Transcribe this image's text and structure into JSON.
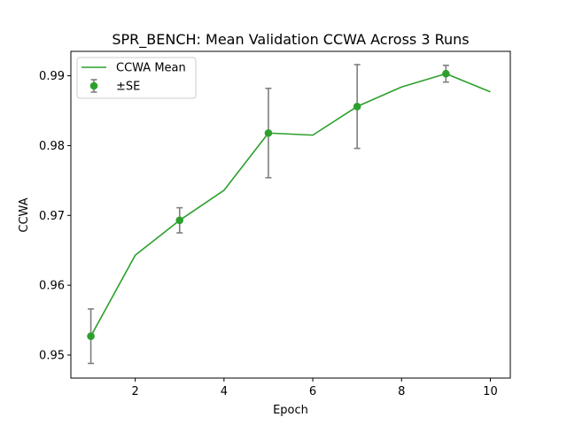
{
  "chart_data": {
    "type": "line",
    "title": "SPR_BENCH: Mean Validation CCWA Across 3 Runs",
    "xlabel": "Epoch",
    "ylabel": "CCWA",
    "xlim": [
      0.55,
      10.45
    ],
    "ylim": [
      0.9467,
      0.9935
    ],
    "xticks": [
      2,
      4,
      6,
      8,
      10
    ],
    "yticks": [
      0.95,
      0.96,
      0.97,
      0.98,
      0.99
    ],
    "ytick_labels": [
      "0.95",
      "0.96",
      "0.97",
      "0.98",
      "0.99"
    ],
    "grid": false,
    "legend_position": "upper left",
    "series": [
      {
        "name": "CCWA Mean",
        "kind": "line",
        "color": "#2ca02c",
        "x": [
          1,
          2,
          3,
          4,
          5,
          6,
          7,
          8,
          9,
          10
        ],
        "y": [
          0.9527,
          0.9643,
          0.9693,
          0.9736,
          0.9818,
          0.9815,
          0.9856,
          0.9884,
          0.9903,
          0.9877
        ]
      },
      {
        "name": "±SE",
        "kind": "errorbar",
        "color": "#2ca02c",
        "error_color": "#7f7f7f",
        "x": [
          1,
          3,
          5,
          7,
          9
        ],
        "y": [
          0.9527,
          0.9693,
          0.9818,
          0.9856,
          0.9903
        ],
        "se": [
          0.0039,
          0.0018,
          0.0064,
          0.006,
          0.0012
        ]
      }
    ]
  }
}
